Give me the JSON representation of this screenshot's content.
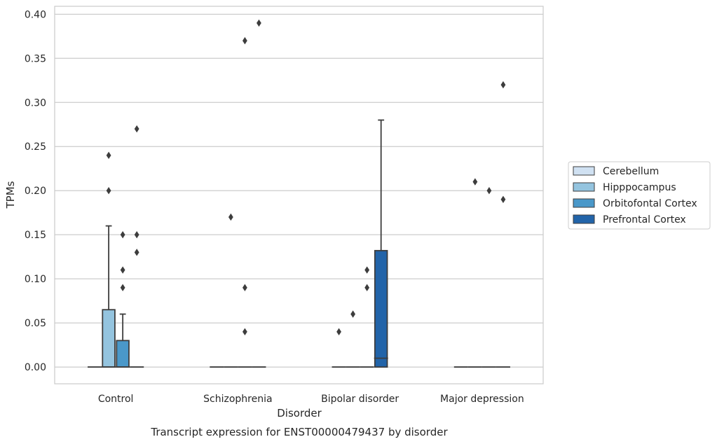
{
  "chart_data": {
    "type": "box",
    "xlabel": "Disorder",
    "ylabel": "TPMs",
    "caption": "Transcript expression for ENST00000479437 by disorder",
    "categories": [
      "Control",
      "Schizophrenia",
      "Bipolar disorder",
      "Major depression"
    ],
    "ylim": [
      -0.019,
      0.409
    ],
    "yticks": [
      0.0,
      0.05,
      0.1,
      0.15,
      0.2,
      0.25,
      0.3,
      0.35,
      0.4
    ],
    "ytick_labels": [
      "0.00",
      "0.05",
      "0.10",
      "0.15",
      "0.20",
      "0.25",
      "0.30",
      "0.35",
      "0.40"
    ],
    "grid": "horizontal",
    "legend_position": "right",
    "series": [
      {
        "name": "Cerebellum",
        "color": "#d0e1f2",
        "boxes": [
          {
            "q1": 0,
            "median": 0,
            "q3": 0,
            "whislo": 0,
            "whishi": 0,
            "fliers": []
          },
          {
            "q1": 0,
            "median": 0,
            "q3": 0,
            "whislo": 0,
            "whishi": 0,
            "fliers": []
          },
          {
            "q1": 0,
            "median": 0,
            "q3": 0,
            "whislo": 0,
            "whishi": 0,
            "fliers": [
              0.04
            ]
          },
          {
            "q1": 0,
            "median": 0,
            "q3": 0,
            "whislo": 0,
            "whishi": 0,
            "fliers": []
          }
        ]
      },
      {
        "name": "Hipppocampus",
        "color": "#94c4df",
        "boxes": [
          {
            "q1": 0,
            "median": 0,
            "q3": 0.065,
            "whislo": 0,
            "whishi": 0.16,
            "fliers": [
              0.2,
              0.24
            ]
          },
          {
            "q1": 0,
            "median": 0,
            "q3": 0,
            "whislo": 0,
            "whishi": 0,
            "fliers": [
              0.17
            ]
          },
          {
            "q1": 0,
            "median": 0,
            "q3": 0,
            "whislo": 0,
            "whishi": 0,
            "fliers": [
              0.06
            ]
          },
          {
            "q1": 0,
            "median": 0,
            "q3": 0,
            "whislo": 0,
            "whishi": 0,
            "fliers": [
              0.21
            ]
          }
        ]
      },
      {
        "name": "Orbitofontal Cortex",
        "color": "#4a98c9",
        "boxes": [
          {
            "q1": 0,
            "median": 0,
            "q3": 0.03,
            "whislo": 0,
            "whishi": 0.06,
            "fliers": [
              0.09,
              0.11,
              0.15
            ]
          },
          {
            "q1": 0,
            "median": 0,
            "q3": 0,
            "whislo": 0,
            "whishi": 0,
            "fliers": [
              0.04,
              0.09,
              0.37
            ]
          },
          {
            "q1": 0,
            "median": 0,
            "q3": 0,
            "whislo": 0,
            "whishi": 0,
            "fliers": [
              0.09,
              0.11
            ]
          },
          {
            "q1": 0,
            "median": 0,
            "q3": 0,
            "whislo": 0,
            "whishi": 0,
            "fliers": [
              0.2
            ]
          }
        ]
      },
      {
        "name": "Prefrontal Cortex",
        "color": "#2264a9",
        "boxes": [
          {
            "q1": 0,
            "median": 0,
            "q3": 0,
            "whislo": 0,
            "whishi": 0,
            "fliers": [
              0.13,
              0.15,
              0.27
            ]
          },
          {
            "q1": 0,
            "median": 0,
            "q3": 0,
            "whislo": 0,
            "whishi": 0,
            "fliers": [
              0.39
            ]
          },
          {
            "q1": 0,
            "median": 0.01,
            "q3": 0.132,
            "whislo": 0,
            "whishi": 0.28,
            "fliers": []
          },
          {
            "q1": 0,
            "median": 0,
            "q3": 0,
            "whislo": 0,
            "whishi": 0,
            "fliers": [
              0.19,
              0.32
            ]
          }
        ]
      }
    ]
  }
}
